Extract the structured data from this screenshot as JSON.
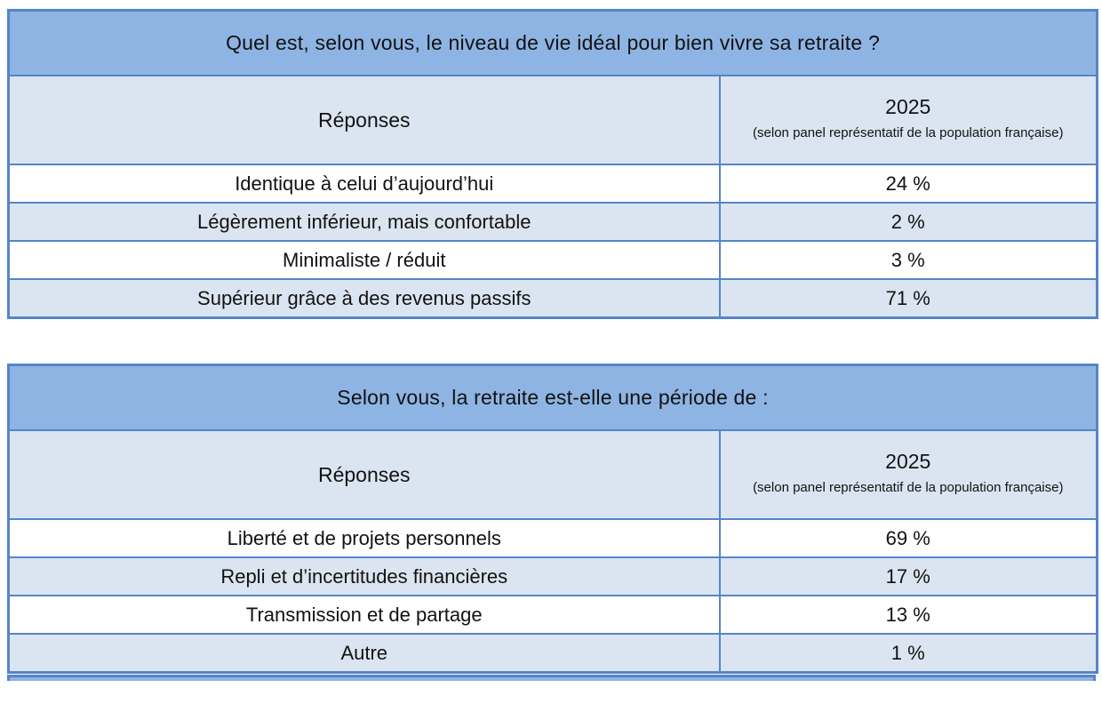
{
  "colors": {
    "title_fill": "#8EB4E3",
    "subheader_fill": "#DBE5F1",
    "row_fill": "#FFFFFF",
    "row_alt_fill": "#DBE5F1",
    "border": "#5585C9",
    "text": "#121212"
  },
  "tables": [
    {
      "title": "Quel est, selon vous, le niveau de vie idéal pour bien vivre sa retraite ?",
      "columns": {
        "responses_label": "Réponses",
        "year_label": "2025",
        "year_note": "(selon panel représentatif de la population française)"
      },
      "rows": [
        {
          "label": "Identique à celui d’aujourd’hui",
          "value": "24 %"
        },
        {
          "label": "Légèrement inférieur, mais confortable",
          "value": "2 %"
        },
        {
          "label": "Minimaliste / réduit",
          "value": "3 %"
        },
        {
          "label": "Supérieur grâce à des revenus passifs",
          "value": "71 %"
        }
      ]
    },
    {
      "title": "Selon vous, la retraite est-elle une période de :",
      "columns": {
        "responses_label": "Réponses",
        "year_label": "2025",
        "year_note": "(selon panel représentatif de la population française)"
      },
      "rows": [
        {
          "label": "Liberté et de projets personnels",
          "value": "69 %"
        },
        {
          "label": "Repli et d’incertitudes financières",
          "value": "17 %"
        },
        {
          "label": "Transmission et de partage",
          "value": "13 %"
        },
        {
          "label": "Autre",
          "value": "1 %"
        }
      ]
    }
  ],
  "chart_data": [
    {
      "type": "table",
      "title": "Quel est, selon vous, le niveau de vie idéal pour bien vivre sa retraite ?",
      "categories": [
        "Identique à celui d’aujourd’hui",
        "Légèrement inférieur, mais confortable",
        "Minimaliste / réduit",
        "Supérieur grâce à des revenus passifs"
      ],
      "values": [
        24,
        2,
        3,
        71
      ],
      "series_label": "2025 (selon panel représentatif de la population française)",
      "unit": "%"
    },
    {
      "type": "table",
      "title": "Selon vous, la retraite est-elle une période de :",
      "categories": [
        "Liberté et de projets personnels",
        "Repli et d’incertitudes financières",
        "Transmission et de partage",
        "Autre"
      ],
      "values": [
        69,
        17,
        13,
        1
      ],
      "series_label": "2025 (selon panel représentatif de la population française)",
      "unit": "%"
    }
  ]
}
